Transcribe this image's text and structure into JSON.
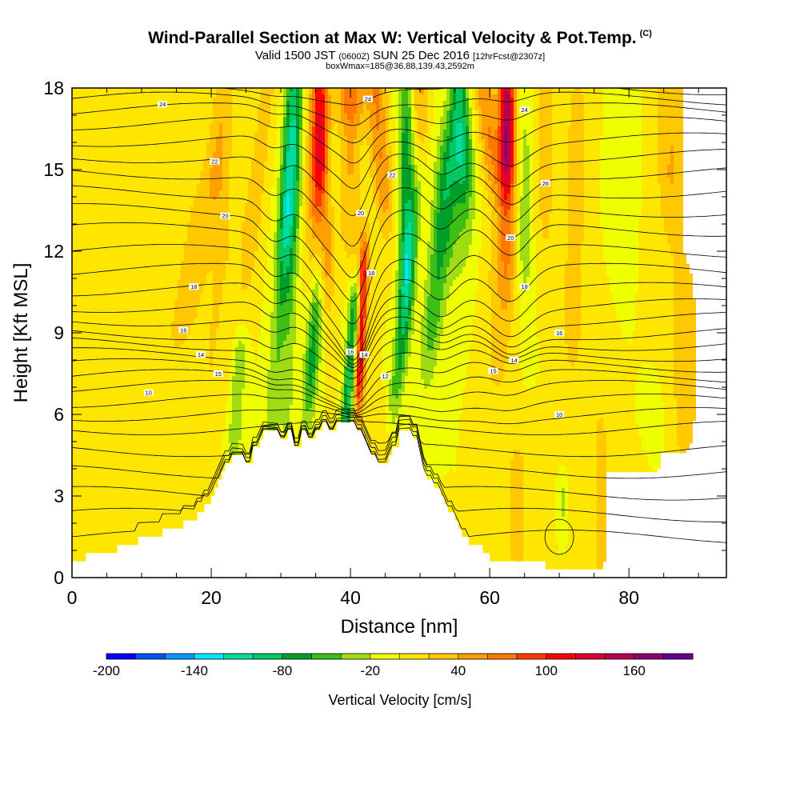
{
  "header": {
    "title": "Wind-Parallel Section at Max W: Vertical Velocity & Pot.Temp.",
    "copyright_tag": "(C)",
    "valid_pre": "Valid 1500 JST",
    "valid_utc": "(0600Z)",
    "valid_post": "SUN 25 Dec 2016",
    "forecast": "[12hrFcst@2307z]",
    "box_info": "boxWmax=185@36.88,139.43,2592m"
  },
  "chart_data": {
    "type": "heatmap",
    "xlabel": "Distance [nm]",
    "ylabel": "Height [Kft MSL]",
    "xlim": [
      0,
      94
    ],
    "ylim": [
      0,
      18
    ],
    "x_ticks": [
      0,
      20,
      40,
      60,
      80
    ],
    "y_ticks": [
      0,
      3,
      6,
      9,
      12,
      15,
      18
    ],
    "colorbar": {
      "label": "Vertical Velocity [cm/s]",
      "levels": [
        -200,
        -180,
        -160,
        -140,
        -120,
        -100,
        -80,
        -60,
        -40,
        -20,
        0,
        20,
        40,
        60,
        80,
        100,
        120,
        140,
        160,
        180
      ],
      "tick_labels": [
        "-200",
        "-140",
        "-80",
        "-20",
        "40",
        "100",
        "160"
      ],
      "colors": [
        "#0000ff",
        "#0050ff",
        "#0096ff",
        "#00e6ff",
        "#00dc9f",
        "#00c864",
        "#00a028",
        "#3cbe14",
        "#9fdc14",
        "#f0ff00",
        "#ffe600",
        "#ffc800",
        "#ffa000",
        "#ff7800",
        "#ff3c00",
        "#ff0000",
        "#dc0032",
        "#b40050",
        "#8c006e",
        "#64008c"
      ]
    },
    "terrain_profile": [
      [
        0,
        0.6
      ],
      [
        2,
        0.6
      ],
      [
        2,
        0.9
      ],
      [
        6.5,
        0.9
      ],
      [
        6.5,
        1.2
      ],
      [
        9.5,
        1.2
      ],
      [
        9.5,
        1.5
      ],
      [
        13,
        1.5
      ],
      [
        13,
        1.8
      ],
      [
        16,
        1.8
      ],
      [
        16,
        2.1
      ],
      [
        18,
        2.1
      ],
      [
        18,
        2.4
      ],
      [
        19,
        2.4
      ],
      [
        19,
        2.7
      ],
      [
        20,
        2.7
      ],
      [
        20,
        3.0
      ],
      [
        20.5,
        3.0
      ],
      [
        20.5,
        3.3
      ],
      [
        21,
        3.3
      ],
      [
        21,
        3.6
      ],
      [
        21.5,
        3.6
      ],
      [
        21.5,
        3.9
      ],
      [
        22,
        3.9
      ],
      [
        22,
        4.2
      ],
      [
        23,
        4.2
      ],
      [
        23,
        4.5
      ],
      [
        25,
        4.5
      ],
      [
        25,
        4.2
      ],
      [
        26,
        4.2
      ],
      [
        26,
        4.8
      ],
      [
        27,
        4.8
      ],
      [
        27,
        5.1
      ],
      [
        27.5,
        5.1
      ],
      [
        27.5,
        5.4
      ],
      [
        30,
        5.4
      ],
      [
        30,
        5.1
      ],
      [
        31,
        5.1
      ],
      [
        31,
        5.4
      ],
      [
        32,
        5.4
      ],
      [
        32,
        4.8
      ],
      [
        33,
        4.8
      ],
      [
        33,
        5.4
      ],
      [
        34,
        5.4
      ],
      [
        34,
        5.1
      ],
      [
        35,
        5.1
      ],
      [
        35,
        5.4
      ],
      [
        36,
        5.4
      ],
      [
        36,
        5.7
      ],
      [
        37,
        5.7
      ],
      [
        37,
        5.4
      ],
      [
        38,
        5.4
      ],
      [
        38,
        5.7
      ],
      [
        41,
        5.7
      ],
      [
        41,
        5.4
      ],
      [
        42,
        5.4
      ],
      [
        42,
        5.1
      ],
      [
        42.5,
        5.1
      ],
      [
        42.5,
        4.8
      ],
      [
        43,
        4.8
      ],
      [
        43,
        4.5
      ],
      [
        44,
        4.5
      ],
      [
        44,
        4.2
      ],
      [
        45.5,
        4.2
      ],
      [
        45.5,
        4.5
      ],
      [
        46,
        4.5
      ],
      [
        46,
        4.8
      ],
      [
        47,
        4.8
      ],
      [
        47,
        5.4
      ],
      [
        49,
        5.4
      ],
      [
        49,
        5.1
      ],
      [
        50,
        5.1
      ],
      [
        50,
        4.5
      ],
      [
        50.5,
        4.5
      ],
      [
        50.5,
        3.9
      ],
      [
        51,
        3.9
      ],
      [
        51,
        3.6
      ],
      [
        52,
        3.6
      ],
      [
        52,
        3.3
      ],
      [
        53,
        3.3
      ],
      [
        53,
        3.0
      ],
      [
        53.5,
        3.0
      ],
      [
        53.5,
        2.7
      ],
      [
        54,
        2.7
      ],
      [
        54,
        2.4
      ],
      [
        55,
        2.4
      ],
      [
        55,
        2.1
      ],
      [
        55.5,
        2.1
      ],
      [
        55.5,
        1.8
      ],
      [
        56,
        1.8
      ],
      [
        56,
        1.5
      ],
      [
        57,
        1.5
      ],
      [
        57,
        1.2
      ],
      [
        59,
        1.2
      ],
      [
        59,
        0.9
      ],
      [
        60,
        0.9
      ],
      [
        60,
        0.6
      ],
      [
        68,
        0.6
      ],
      [
        68,
        0.3
      ],
      [
        94,
        0.3
      ]
    ],
    "w_features": [
      {
        "x": 0,
        "w": 20,
        "xo": 2,
        "y0": 1.5,
        "y1": 5,
        "sx": 2,
        "sy": 1.2
      },
      {
        "x": 16,
        "w": 25,
        "xo": 2,
        "y0": 10,
        "y1": 13,
        "sx": 2.5,
        "sy": 3
      },
      {
        "x": 20,
        "w": 20,
        "xo": 2,
        "y0": 8,
        "y1": 12,
        "sx": 3,
        "sy": 3
      },
      {
        "x": 21,
        "w": 35,
        "xo": 1,
        "y0": 15,
        "y1": 18.5,
        "sx": 1.6,
        "sy": 1.5
      },
      {
        "x": 23.5,
        "w": -40,
        "xo": 0.5,
        "y0": 5.5,
        "y1": 8,
        "sx": 1,
        "sy": 1.2
      },
      {
        "x": 26,
        "w": 30,
        "xo": 2,
        "y0": 13,
        "y1": 18,
        "sx": 1.3,
        "sy": 3
      },
      {
        "x": 29,
        "w": -35,
        "xo": 2.5,
        "y0": 7,
        "y1": 15,
        "sx": 1.2,
        "sy": 3
      },
      {
        "x": 31,
        "w": -80,
        "xo": 1,
        "y0": 14,
        "y1": 18.5,
        "sx": 1.2,
        "sy": 3.5
      },
      {
        "x": 31,
        "w": -30,
        "xo": 1,
        "y0": 7,
        "y1": 13,
        "sx": 1,
        "sy": 2.5
      },
      {
        "x": 36,
        "w": 110,
        "xo": -0.5,
        "y0": 14,
        "y1": 18.5,
        "sx": 1.3,
        "sy": 3.5
      },
      {
        "x": 35,
        "w": 40,
        "xo": 0,
        "y0": 12,
        "y1": 15,
        "sx": 1.5,
        "sy": 2
      },
      {
        "x": 34.5,
        "w": -70,
        "xo": 1.5,
        "y0": 8,
        "y1": 13,
        "sx": 1.1,
        "sy": 2.5
      },
      {
        "x": 39.5,
        "w": -90,
        "xo": 1,
        "y0": 6,
        "y1": 9.5,
        "sx": 0.8,
        "sy": 1.6
      },
      {
        "x": 41.3,
        "w": 115,
        "xo": 0.5,
        "y0": 7.5,
        "y1": 11,
        "sx": 0.8,
        "sy": 1.6
      },
      {
        "x": 40,
        "w": 40,
        "xo": 0,
        "y0": 13,
        "y1": 15,
        "sx": 1.5,
        "sy": 1.5
      },
      {
        "x": 40,
        "w": 70,
        "xo": 0,
        "y0": 17.5,
        "y1": 18.5,
        "sx": 2,
        "sy": 1.3
      },
      {
        "x": 44.5,
        "w": 60,
        "xo": -1,
        "y0": 15,
        "y1": 18.5,
        "sx": 1.5,
        "sy": 2.5
      },
      {
        "x": 48,
        "w": -70,
        "xo": 0,
        "y0": 12,
        "y1": 16,
        "sx": 1.2,
        "sy": 3
      },
      {
        "x": 47,
        "w": -60,
        "xo": 1.5,
        "y0": 8,
        "y1": 12,
        "sx": 1,
        "sy": 2.5
      },
      {
        "x": 50,
        "w": 45,
        "xo": 0,
        "y0": 17,
        "y1": 18.5,
        "sx": 1.2,
        "sy": 1.5
      },
      {
        "x": 52,
        "w": -55,
        "xo": 1.5,
        "y0": 10,
        "y1": 14,
        "sx": 1.5,
        "sy": 3
      },
      {
        "x": 56,
        "w": -70,
        "xo": -0.5,
        "y0": 16,
        "y1": 18.5,
        "sx": 1.3,
        "sy": 2.5
      },
      {
        "x": 55,
        "w": -35,
        "xo": 0,
        "y0": 13,
        "y1": 15,
        "sx": 2.5,
        "sy": 2.5
      },
      {
        "x": 60,
        "w": 60,
        "xo": -1,
        "y0": 16,
        "y1": 18.5,
        "sx": 1.5,
        "sy": 2.5
      },
      {
        "x": 62.5,
        "w": 115,
        "xo": 0,
        "y0": 16,
        "y1": 18.5,
        "sx": 1.1,
        "sy": 2
      },
      {
        "x": 62.5,
        "w": 50,
        "xo": 0,
        "y0": 12,
        "y1": 16,
        "sx": 1.3,
        "sy": 2.5
      },
      {
        "x": 61,
        "w": 25,
        "xo": 0,
        "y0": 8,
        "y1": 11,
        "sx": 2,
        "sy": 2
      },
      {
        "x": 65,
        "w": -30,
        "xo": 0,
        "y0": 12,
        "y1": 15,
        "sx": 1,
        "sy": 2.5
      },
      {
        "x": 68,
        "w": 30,
        "xo": 0,
        "y0": 14,
        "y1": 18,
        "sx": 1.2,
        "sy": 2.5
      },
      {
        "x": 72,
        "w": 35,
        "xo": 0.5,
        "y0": 10,
        "y1": 16,
        "sx": 1.5,
        "sy": 3
      },
      {
        "x": 79,
        "w": -20,
        "xo": 0,
        "y0": 15,
        "y1": 18,
        "sx": 1.3,
        "sy": 3
      },
      {
        "x": 86,
        "w": 40,
        "xo": 0,
        "y0": 15,
        "y1": 18.5,
        "sx": 2,
        "sy": 2.5
      },
      {
        "x": 88,
        "w": 25,
        "xo": 0,
        "y0": 6,
        "y1": 10,
        "sx": 3,
        "sy": 3
      },
      {
        "x": 76,
        "w": 22,
        "xo": 0,
        "y0": 1,
        "y1": 5,
        "sx": 2,
        "sy": 3
      },
      {
        "x": 64,
        "w": 25,
        "xo": 0,
        "y0": 1,
        "y1": 4,
        "sx": 1.8,
        "sy": 1.5
      },
      {
        "x": 84,
        "w": 22,
        "xo": 0,
        "y0": 1,
        "y1": 3,
        "sx": 2,
        "sy": 1.8
      },
      {
        "x": 84,
        "w": -20,
        "xo": 0,
        "y0": 3,
        "y1": 5,
        "sx": 1.5,
        "sy": 2
      },
      {
        "x": 70.5,
        "w": -25,
        "xo": 0,
        "y0": 2.5,
        "y1": 3.0,
        "sx": 0.4,
        "sy": 0.6
      },
      {
        "x": 44,
        "w": 20,
        "xo": 0,
        "y0": 1,
        "y1": 4,
        "sx": 3,
        "sy": 2
      }
    ],
    "theta_contours": {
      "levels": [
        0,
        1,
        2,
        3,
        4,
        5,
        6,
        7,
        8,
        9,
        10,
        11,
        12,
        13,
        14,
        15,
        16,
        17,
        18,
        19,
        20,
        21,
        22,
        23,
        24,
        25,
        26,
        27,
        28
      ],
      "heights_kft": [
        1.5,
        2.3,
        3.1,
        3.9,
        4.7,
        5.5,
        6.0,
        6.5,
        7.0,
        7.4,
        7.8,
        8.2,
        8.6,
        9.0,
        9.5,
        10.0,
        10.6,
        11.3,
        12.0,
        12.8,
        13.5,
        14.2,
        14.9,
        15.5,
        16.1,
        16.7,
        17.2,
        17.6,
        18.0
      ]
    },
    "contour_labels": [
      {
        "text": "24",
        "x": 13,
        "y": 17.4
      },
      {
        "text": "22",
        "x": 20.5,
        "y": 15.3
      },
      {
        "text": "20",
        "x": 22,
        "y": 13.3
      },
      {
        "text": "18",
        "x": 17.5,
        "y": 10.7
      },
      {
        "text": "16",
        "x": 16,
        "y": 9.1
      },
      {
        "text": "14",
        "x": 18.5,
        "y": 8.2
      },
      {
        "text": "15",
        "x": 21,
        "y": 7.5
      },
      {
        "text": "10",
        "x": 11,
        "y": 6.8
      },
      {
        "text": "24",
        "x": 42.5,
        "y": 17.6
      },
      {
        "text": "22",
        "x": 46,
        "y": 14.8
      },
      {
        "text": "20",
        "x": 41.5,
        "y": 13.4
      },
      {
        "text": "18",
        "x": 43,
        "y": 11.2
      },
      {
        "text": "16",
        "x": 40,
        "y": 8.3
      },
      {
        "text": "14",
        "x": 42,
        "y": 8.2
      },
      {
        "text": "12",
        "x": 45,
        "y": 7.4
      },
      {
        "text": "24",
        "x": 65,
        "y": 17.2
      },
      {
        "text": "26",
        "x": 68,
        "y": 14.5
      },
      {
        "text": "20",
        "x": 63,
        "y": 12.5
      },
      {
        "text": "18",
        "x": 65,
        "y": 10.7
      },
      {
        "text": "16",
        "x": 70,
        "y": 9.0
      },
      {
        "text": "14",
        "x": 63.5,
        "y": 8.0
      },
      {
        "text": "15",
        "x": 60.5,
        "y": 7.6
      },
      {
        "text": "10",
        "x": 70,
        "y": 6.0
      }
    ]
  }
}
